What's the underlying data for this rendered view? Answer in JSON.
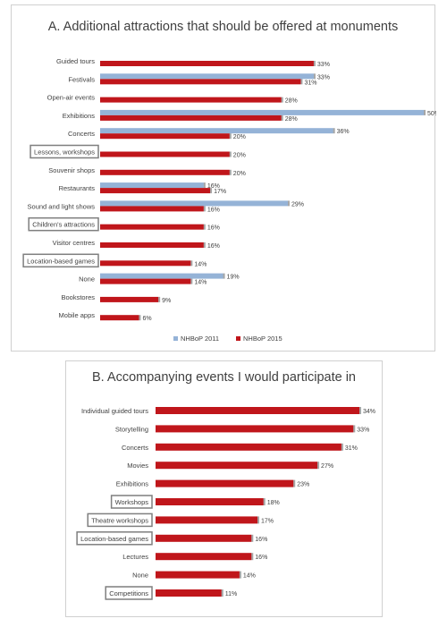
{
  "chart_data": [
    {
      "type": "bar",
      "orientation": "horizontal",
      "title": "A. Additional attractions that should be offered at monuments",
      "categories": [
        "Guided tours",
        "Festivals",
        "Open-air events",
        "Exhibitions",
        "Concerts",
        "Lessons, workshops",
        "Souvenir shops",
        "Restaurants",
        "Sound and light shows",
        "Children's attractions",
        "Visitor centres",
        "Location-based games",
        "None",
        "Bookstores",
        "Mobile apps"
      ],
      "highlighted_categories": [
        "Lessons, workshops",
        "Children's attractions",
        "Location-based games"
      ],
      "series": [
        {
          "name": "NHBoP 2011",
          "color": "#95b3d7",
          "values": [
            null,
            33,
            null,
            50,
            36,
            null,
            null,
            16,
            29,
            null,
            null,
            null,
            19,
            null,
            null
          ],
          "labels": [
            null,
            "33%",
            null,
            "50%",
            "36%",
            null,
            null,
            "16%",
            "29%",
            null,
            null,
            null,
            "19%",
            null,
            null
          ]
        },
        {
          "name": "NHBoP 2015",
          "color": "#c0161b",
          "values": [
            33,
            31,
            28,
            28,
            20,
            20,
            20,
            17,
            16,
            16,
            16,
            14,
            14,
            9,
            6
          ],
          "labels": [
            "33%",
            "31%",
            "28%",
            "28%",
            "20%",
            "20%",
            "20%",
            "17%",
            "16%",
            "16%",
            "16%",
            "14%",
            "14%",
            "9%",
            "6%"
          ]
        }
      ],
      "legend": "bottom",
      "xlim": [
        0,
        50
      ]
    },
    {
      "type": "bar",
      "orientation": "horizontal",
      "title": "B. Accompanying events I would participate in",
      "categories": [
        "Individual guided tours",
        "Storytelling",
        "Concerts",
        "Movies",
        "Exhibitions",
        "Workshops",
        "Theatre workshops",
        "Location-based games",
        "Lectures",
        "None",
        "Competitions"
      ],
      "highlighted_categories": [
        "Workshops",
        "Theatre workshops",
        "Location-based games",
        "Competitions"
      ],
      "series": [
        {
          "color": "#c0161b",
          "values": [
            34,
            33,
            31,
            27,
            23,
            18,
            17,
            16,
            16,
            14,
            11
          ],
          "labels": [
            "34%",
            "33%",
            "31%",
            "27%",
            "23%",
            "18%",
            "17%",
            "16%",
            "16%",
            "14%",
            "11%"
          ]
        }
      ],
      "xlim": [
        0,
        34
      ]
    }
  ]
}
